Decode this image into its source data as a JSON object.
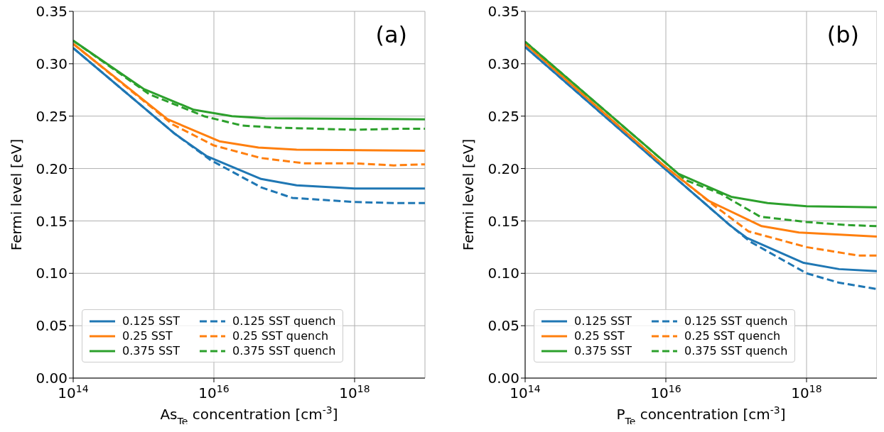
{
  "chart_data": [
    {
      "type": "line",
      "xlabel": "As$_{Te}$ concentration [cm$^{-3}$]",
      "ylabel": "Fermi level [eV]",
      "annotations": [
        "(a)"
      ],
      "log": "x",
      "grid": true,
      "legend": "bottom left",
      "marker": "none",
      "xlim": [
        100000000000000.0,
        1e+19
      ],
      "xticks": [
        {
          "value": 100000000000000.0,
          "label": "10$^{14}$"
        },
        {
          "value": 1e+16,
          "label": "10$^{16}$"
        },
        {
          "value": 1e+18,
          "label": "10$^{18}$"
        }
      ],
      "ylim": [
        0,
        0.35
      ],
      "yticks": [
        {
          "value": 0,
          "label": "0.00"
        },
        {
          "value": 0.05,
          "label": "0.05"
        },
        {
          "value": 0.1,
          "label": "0.10"
        },
        {
          "value": 0.15,
          "label": "0.15"
        },
        {
          "value": 0.2,
          "label": "0.20"
        },
        {
          "value": 0.25,
          "label": "0.25"
        },
        {
          "value": 0.3,
          "label": "0.30"
        },
        {
          "value": 0.35,
          "label": "0.35"
        }
      ],
      "series": [
        {
          "name": "0.125 SST",
          "color": "#1f77b4",
          "line_style": "solid",
          "x": [
            100000000000000.0,
            2800000000000000.0,
            7800000000000000.0,
            4.7e+16,
            1.5e+17,
            1e+18,
            1e+19
          ],
          "values": [
            0.315,
            0.233,
            0.212,
            0.19,
            0.184,
            0.181,
            0.181
          ]
        },
        {
          "name": "0.25 SST",
          "color": "#ff7f0e",
          "line_style": "solid",
          "x": [
            100000000000000.0,
            2200000000000000.0,
            1.2e+16,
            4.3e+16,
            1.5e+17,
            1e+19
          ],
          "values": [
            0.319,
            0.247,
            0.226,
            0.22,
            0.218,
            0.217
          ]
        },
        {
          "name": "0.375 SST",
          "color": "#2ca02c",
          "line_style": "solid",
          "x": [
            100000000000000.0,
            1000000000000000.0,
            5200000000000000.0,
            1.8e+16,
            5.4e+16,
            1e+19
          ],
          "values": [
            0.322,
            0.276,
            0.256,
            0.25,
            0.248,
            0.247
          ]
        },
        {
          "name": "0.125 SST quench",
          "color": "#1f77b4",
          "line_style": "dashed",
          "x": [
            100000000000000.0,
            2800000000000000.0,
            9000000000000000.0,
            4.7e+16,
            1.3e+17,
            1e+18,
            4.2e+18,
            1e+19
          ],
          "values": [
            0.315,
            0.233,
            0.208,
            0.182,
            0.172,
            0.168,
            0.167,
            0.167
          ]
        },
        {
          "name": "0.25 SST quench",
          "color": "#ff7f0e",
          "line_style": "dashed",
          "x": [
            100000000000000.0,
            2600000000000000.0,
            1e+16,
            4.7e+16,
            1.9e+17,
            1e+18,
            3.6e+18,
            1e+19
          ],
          "values": [
            0.319,
            0.242,
            0.222,
            0.21,
            0.205,
            0.205,
            0.203,
            0.204
          ]
        },
        {
          "name": "0.375 SST quench",
          "color": "#2ca02c",
          "line_style": "dashed",
          "x": [
            100000000000000.0,
            1200000000000000.0,
            7200000000000000.0,
            2.5e+16,
            7.9e+16,
            1e+18,
            4.2e+18,
            1e+19
          ],
          "values": [
            0.322,
            0.271,
            0.25,
            0.241,
            0.239,
            0.237,
            0.238,
            0.238
          ]
        }
      ]
    },
    {
      "type": "line",
      "xlabel": "P$_{Te}$ concentration [cm$^{-3}$]",
      "ylabel": "Fermi level [eV]",
      "annotations": [
        "(b)"
      ],
      "log": "x",
      "grid": true,
      "legend": "bottom left",
      "marker": "none",
      "xlim": [
        100000000000000.0,
        1e+19
      ],
      "xticks": [
        {
          "value": 100000000000000.0,
          "label": "10$^{14}$"
        },
        {
          "value": 1e+16,
          "label": "10$^{16}$"
        },
        {
          "value": 1e+18,
          "label": "10$^{18}$"
        }
      ],
      "ylim": [
        0,
        0.35
      ],
      "yticks": [
        {
          "value": 0,
          "label": "0.00"
        },
        {
          "value": 0.05,
          "label": "0.05"
        },
        {
          "value": 0.1,
          "label": "0.10"
        },
        {
          "value": 0.15,
          "label": "0.15"
        },
        {
          "value": 0.2,
          "label": "0.20"
        },
        {
          "value": 0.25,
          "label": "0.25"
        },
        {
          "value": 0.3,
          "label": "0.30"
        },
        {
          "value": 0.35,
          "label": "0.35"
        }
      ],
      "series": [
        {
          "name": "0.125 SST",
          "color": "#1f77b4",
          "line_style": "solid",
          "x": [
            100000000000000.0,
            1e+16,
            8.1e+16,
            1.4e+17,
            9.1e+17,
            2.9e+18,
            1e+19
          ],
          "values": [
            0.316,
            0.199,
            0.146,
            0.134,
            0.11,
            0.104,
            0.102
          ]
        },
        {
          "name": "0.25 SST",
          "color": "#ff7f0e",
          "line_style": "solid",
          "x": [
            100000000000000.0,
            9300000000000000.0,
            4.1e+16,
            2.3e+17,
            7.8e+17,
            1e+19
          ],
          "values": [
            0.319,
            0.203,
            0.169,
            0.145,
            0.139,
            0.135
          ]
        },
        {
          "name": "0.375 SST",
          "color": "#2ca02c",
          "line_style": "solid",
          "x": [
            100000000000000.0,
            1.5e+16,
            8.5e+16,
            2.8e+17,
            1e+18,
            1e+19
          ],
          "values": [
            0.321,
            0.195,
            0.173,
            0.167,
            0.164,
            0.163
          ]
        },
        {
          "name": "0.125 SST quench",
          "color": "#1f77b4",
          "line_style": "dashed",
          "x": [
            100000000000000.0,
            1e+16,
            8.1e+16,
            1.6e+17,
            1e+18,
            2.9e+18,
            1e+19
          ],
          "values": [
            0.316,
            0.199,
            0.146,
            0.13,
            0.1,
            0.091,
            0.085
          ]
        },
        {
          "name": "0.25 SST quench",
          "color": "#ff7f0e",
          "line_style": "dashed",
          "x": [
            100000000000000.0,
            9300000000000000.0,
            4.8e+16,
            1.5e+17,
            1e+18,
            5.4e+18,
            1e+19
          ],
          "values": [
            0.319,
            0.203,
            0.165,
            0.14,
            0.125,
            0.117,
            0.117
          ]
        },
        {
          "name": "0.375 SST quench",
          "color": "#2ca02c",
          "line_style": "dashed",
          "x": [
            100000000000000.0,
            1.9e+16,
            6e+16,
            2.2e+17,
            1e+18,
            4e+18,
            1e+19
          ],
          "values": [
            0.321,
            0.189,
            0.176,
            0.154,
            0.149,
            0.146,
            0.145
          ]
        }
      ]
    }
  ]
}
